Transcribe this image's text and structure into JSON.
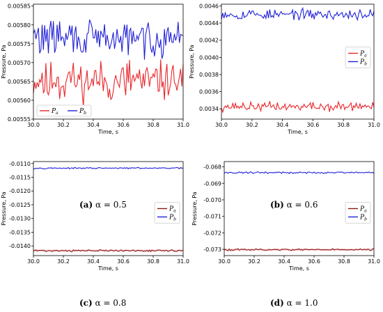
{
  "colors": {
    "pa": "#e8262a",
    "pb": "#1f1fd8",
    "pa_dark": "#8b1a0a"
  },
  "chart_data": [
    {
      "type": "line",
      "caption_label": "(a)",
      "caption_rest": "α = 0.5",
      "xlabel": "Time, s",
      "ylabel": "Pressure, Pa",
      "xlim": [
        30.0,
        31.0
      ],
      "ylim": [
        0.00555,
        0.005855
      ],
      "xticks": [
        "30.0",
        "30.2",
        "30.4",
        "30.6",
        "30.8",
        "31.0"
      ],
      "yticks": [
        "0.00555",
        "0.00560",
        "0.00565",
        "0.00570",
        "0.00575",
        "0.00580",
        "0.00585"
      ],
      "legend": "bottom-left",
      "series": [
        {
          "name": "Pa",
          "base": 0.005653,
          "amp": 4.5e-05,
          "color": "pa"
        },
        {
          "name": "Pb",
          "base": 0.005765,
          "amp": 4e-05,
          "color": "pb"
        }
      ]
    },
    {
      "type": "line",
      "caption_label": "(b)",
      "caption_rest": "α = 0.6",
      "xlabel": "Time, s",
      "ylabel": "Pressure, Pa",
      "xlim": [
        30.0,
        31.0
      ],
      "ylim": [
        0.00328,
        0.00462
      ],
      "xticks": [
        "30.0",
        "30.2",
        "30.4",
        "30.6",
        "30.8",
        "31.0"
      ],
      "yticks": [
        "0.0034",
        "0.0036",
        "0.0038",
        "0.0040",
        "0.0042",
        "0.0044",
        "0.0046"
      ],
      "legend": "center-right",
      "series": [
        {
          "name": "Pa",
          "base": 0.003425,
          "amp": 4.5e-05,
          "color": "pa"
        },
        {
          "name": "Pb",
          "base": 0.0045,
          "amp": 5e-05,
          "color": "pb"
        }
      ]
    },
    {
      "type": "line",
      "caption_label": "(c)",
      "caption_rest": "α = 0.8",
      "xlabel": "Time, s",
      "ylabel": "Pressure, Pa",
      "xlim": [
        30.0,
        31.0
      ],
      "ylim": [
        -0.01435,
        -0.01093
      ],
      "xticks": [
        "30.0",
        "30.2",
        "30.4",
        "30.6",
        "30.8",
        "31.0"
      ],
      "yticks": [
        "-0.0110",
        "-0.0115",
        "-0.0120",
        "-0.0125",
        "-0.0130",
        "-0.0135",
        "-0.0140"
      ],
      "legend": "center-right",
      "series": [
        {
          "name": "Pa",
          "base": -0.01417,
          "amp": 2.5e-05,
          "color": "pa_dark"
        },
        {
          "name": "Pb",
          "base": -0.01117,
          "amp": 2e-05,
          "color": "pb"
        }
      ]
    },
    {
      "type": "line",
      "caption_label": "(d)",
      "caption_rest": "α = 1.0",
      "xlabel": "Time, s",
      "ylabel": "Pressure, Pa",
      "xlim": [
        30.0,
        31.0
      ],
      "ylim": [
        -0.07338,
        -0.06768
      ],
      "xticks": [
        "30.0",
        "30.2",
        "30.4",
        "30.6",
        "30.8",
        "31.0"
      ],
      "yticks": [
        "-0.068",
        "-0.069",
        "-0.070",
        "-0.071",
        "-0.072",
        "-0.073"
      ],
      "legend": "center-right",
      "series": [
        {
          "name": "Pa",
          "base": -0.07302,
          "amp": 4e-05,
          "color": "pa_dark"
        },
        {
          "name": "Pb",
          "base": -0.06835,
          "amp": 4.5e-05,
          "color": "pb"
        }
      ]
    }
  ]
}
